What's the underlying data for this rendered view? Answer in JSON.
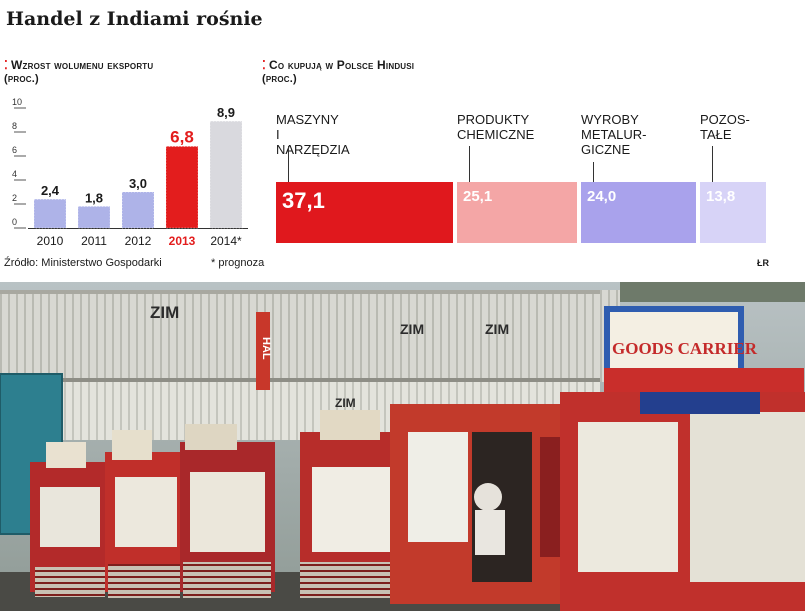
{
  "headline": "Handel z Indiami rośnie",
  "left": {
    "title": "Wzrost wolumenu eksportu",
    "subtitle": "(proc.)"
  },
  "right": {
    "title": "Co kupują w Polsce Hindusi",
    "subtitle": "(proc.)"
  },
  "source": "Źródło: Ministerstwo Gospodarki",
  "note": "* prognoza",
  "logo": "ŁR",
  "photo": {
    "container_brand": "ZIM",
    "container_brand_alt": "HAL",
    "truck_sign": "GOODS CARRIER"
  },
  "colors": {
    "accent": "#e31d1d",
    "bar_normal": "#aeb3e8",
    "bar_highlight": "#e31d1d",
    "bar_forecast": "#d9d9de",
    "share1": "#e0181d",
    "share2": "#f4a6a6",
    "share3": "#a9a2ec",
    "share4": "#d7d3f7"
  },
  "chart_data": [
    {
      "type": "bar",
      "categories": [
        "2010",
        "2011",
        "2012",
        "2013",
        "2014*"
      ],
      "values": [
        2.4,
        1.8,
        3.0,
        6.8,
        8.9
      ],
      "value_labels": [
        "2,4",
        "1,8",
        "3,0",
        "6,8",
        "8,9"
      ],
      "highlight_index": 3,
      "forecast_index": 4,
      "yticks": [
        "0",
        "2",
        "4",
        "6",
        "8",
        "10"
      ],
      "ylim": [
        0,
        10
      ],
      "title": "Wzrost wolumenu eksportu",
      "ylabel": "(proc.)"
    },
    {
      "type": "bar",
      "categories": [
        "MASZYNY\nI NARZĘDZIA",
        "PRODUKTY\nCHEMICZNE",
        "WYROBY\nMETALUR-\nGICZNE",
        "POZOS-\nTAŁE"
      ],
      "values": [
        37.1,
        25.1,
        24.0,
        13.8
      ],
      "value_labels": [
        "37,1",
        "25,1",
        "24,0",
        "13,8"
      ],
      "title": "Co kupują w Polsce Hindusi",
      "ylabel": "(proc.)"
    }
  ]
}
